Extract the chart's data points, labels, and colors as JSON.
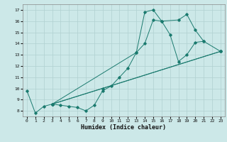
{
  "xlabel": "Humidex (Indice chaleur)",
  "xlim": [
    -0.5,
    23.5
  ],
  "ylim": [
    7.5,
    17.5
  ],
  "xticks": [
    0,
    1,
    2,
    3,
    4,
    5,
    6,
    7,
    8,
    9,
    10,
    11,
    12,
    13,
    14,
    15,
    16,
    17,
    18,
    19,
    20,
    21,
    22,
    23
  ],
  "yticks": [
    8,
    9,
    10,
    11,
    12,
    13,
    14,
    15,
    16,
    17
  ],
  "line_color": "#1a7a6e",
  "bg_color": "#cce8e8",
  "grid_color": "#b0d0d0",
  "lines_data": [
    {
      "x": [
        0,
        1,
        2,
        3,
        4,
        5,
        6,
        7,
        8,
        9,
        10,
        11,
        12,
        13,
        14,
        15,
        16,
        17,
        18,
        19,
        20,
        21
      ],
      "y": [
        9.8,
        7.8,
        8.4,
        8.6,
        8.5,
        8.4,
        8.3,
        8.0,
        8.5,
        9.8,
        10.2,
        11.0,
        11.8,
        13.2,
        14.0,
        16.1,
        16.0,
        14.8,
        12.4,
        13.0,
        14.1,
        14.2
      ]
    },
    {
      "x": [
        3,
        13,
        14,
        15,
        16,
        18,
        19,
        20,
        21,
        23
      ],
      "y": [
        8.6,
        13.2,
        16.8,
        17.0,
        16.0,
        16.1,
        16.6,
        15.2,
        14.2,
        13.3
      ]
    },
    {
      "x": [
        3,
        23
      ],
      "y": [
        8.6,
        13.3
      ]
    },
    {
      "x": [
        3,
        9,
        23
      ],
      "y": [
        8.6,
        10.0,
        13.3
      ]
    }
  ]
}
